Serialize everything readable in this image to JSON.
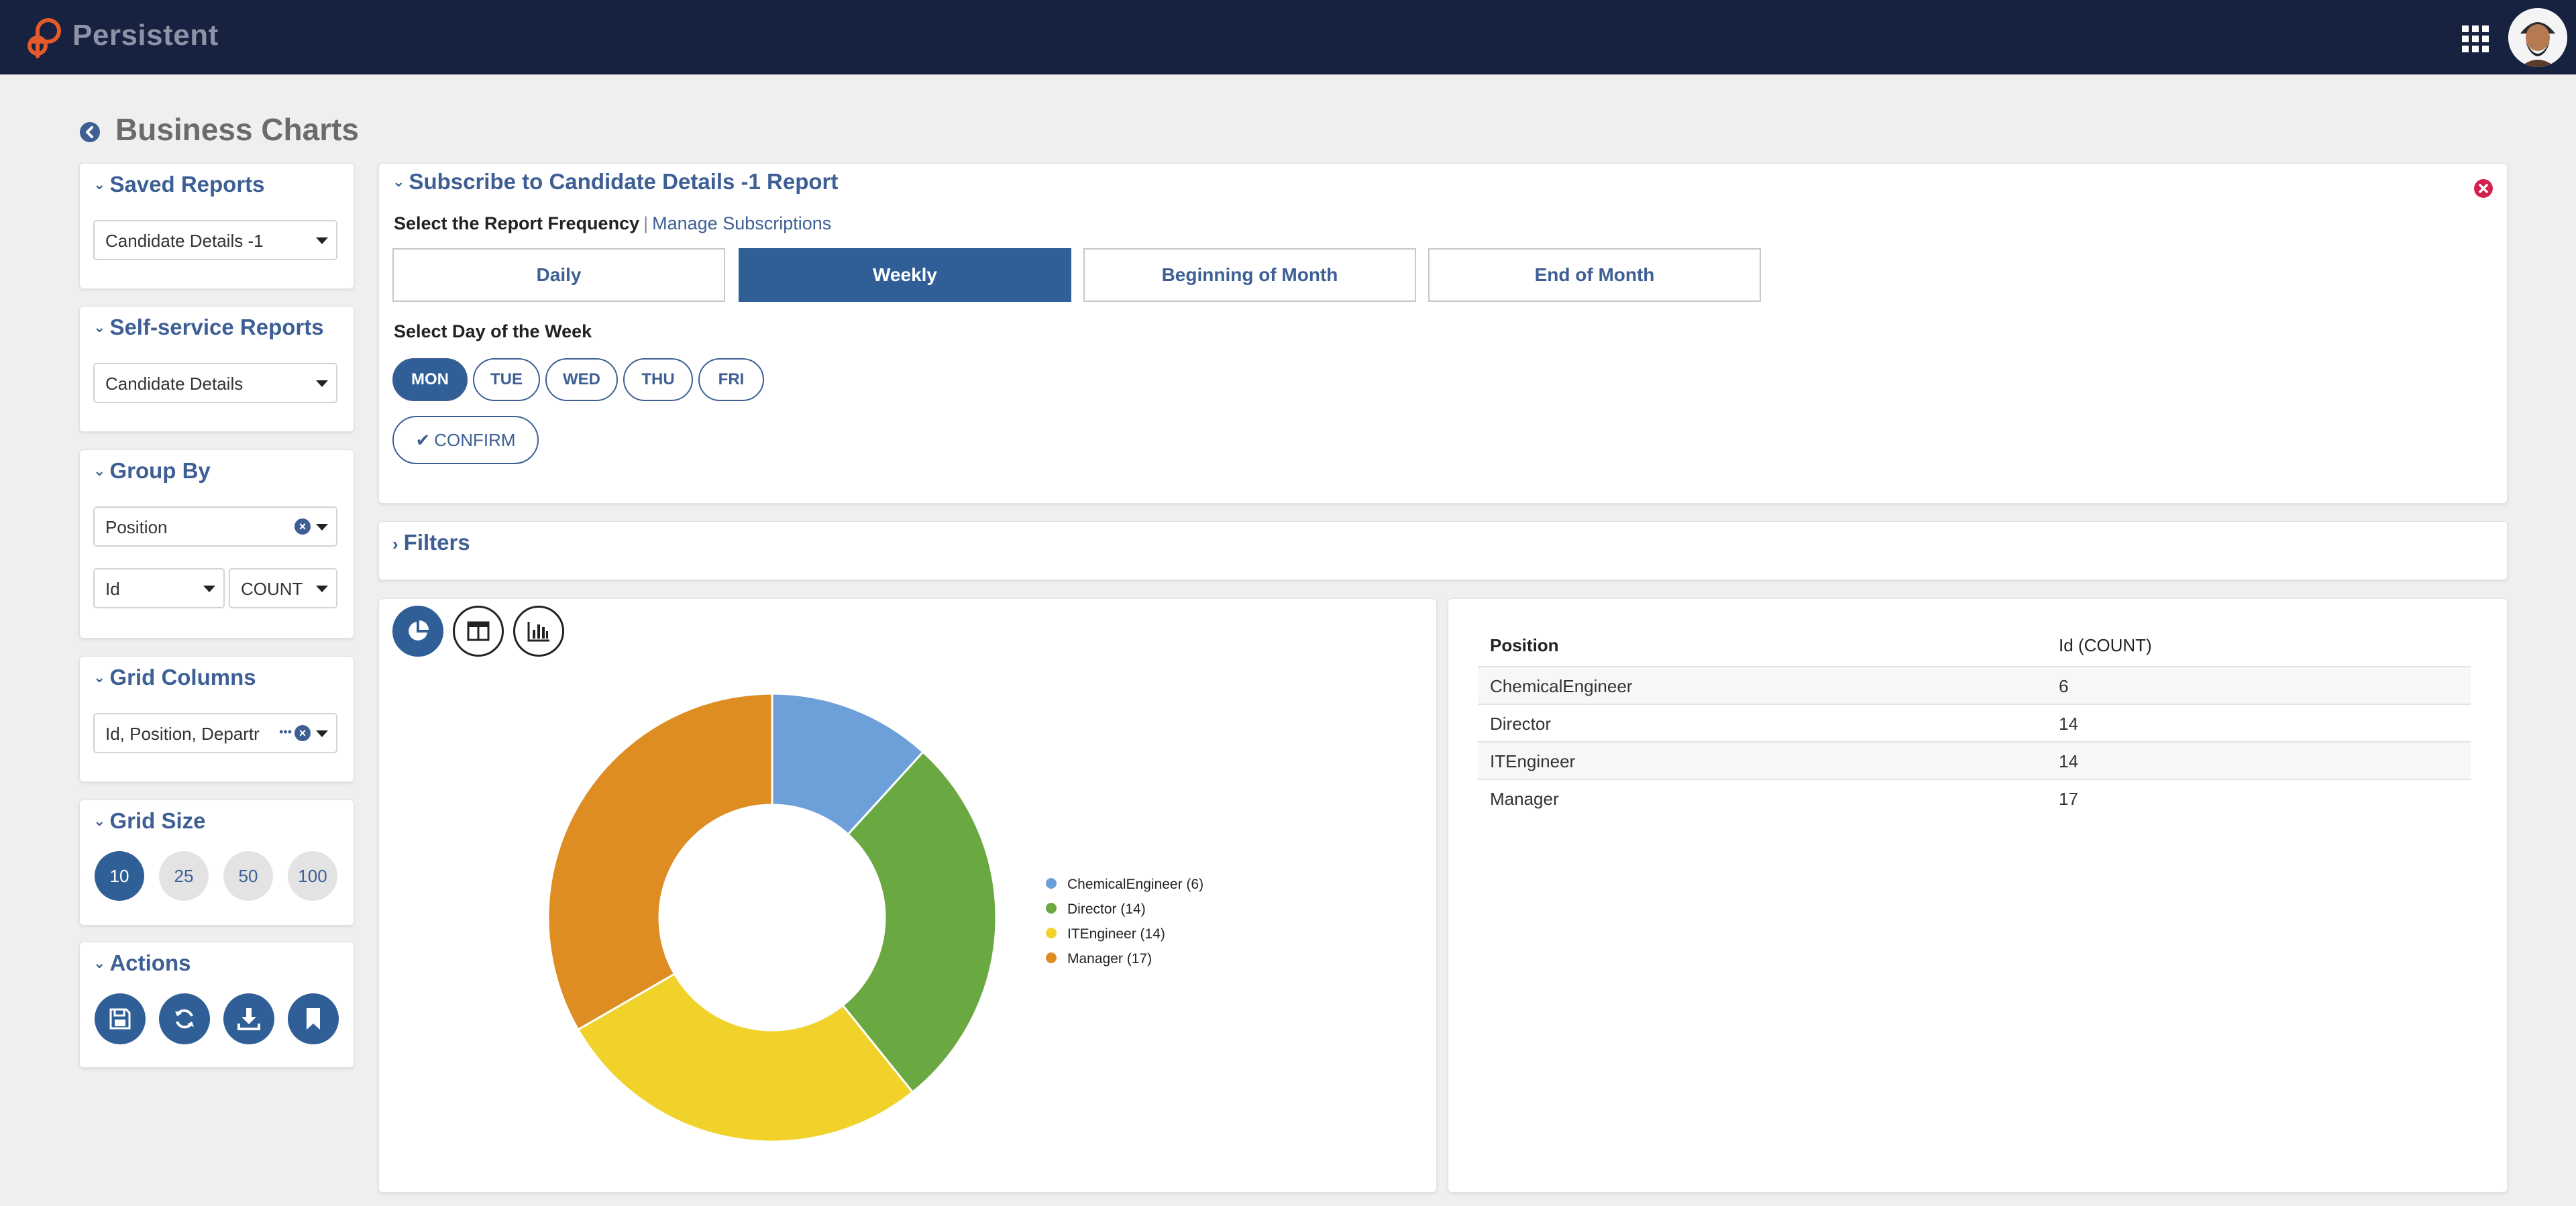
{
  "app": {
    "brand": "Persistent"
  },
  "page": {
    "title": "Business Charts"
  },
  "sidebar": {
    "saved_reports": {
      "title": "Saved Reports",
      "value": "Candidate Details -1"
    },
    "self_service": {
      "title": "Self-service Reports",
      "value": "Candidate Details"
    },
    "group_by": {
      "title": "Group By",
      "field": "Position",
      "measure_field": "Id",
      "aggregate": "COUNT"
    },
    "grid_columns": {
      "title": "Grid Columns",
      "value": "Id, Position, Departr",
      "ellipsis": "•••"
    },
    "grid_size": {
      "title": "Grid Size",
      "options": [
        "10",
        "25",
        "50",
        "100"
      ],
      "selected": "10"
    },
    "actions": {
      "title": "Actions",
      "buttons": [
        "save-icon",
        "refresh-icon",
        "download-icon",
        "bookmark-icon"
      ]
    }
  },
  "subscribe": {
    "title": "Subscribe to Candidate Details -1 Report",
    "freq_label": "Select the Report Frequency",
    "separator": "|",
    "manage_link": "Manage Subscriptions",
    "frequencies": [
      "Daily",
      "Weekly",
      "Beginning of Month",
      "End of Month"
    ],
    "selected_frequency": "Weekly",
    "dow_label": "Select Day of the Week",
    "days": [
      "MON",
      "TUE",
      "WED",
      "THU",
      "FRI"
    ],
    "selected_day": "MON",
    "confirm": "CONFIRM"
  },
  "filters": {
    "title": "Filters"
  },
  "chart_data": {
    "type": "pie",
    "variant": "donut",
    "categories": [
      "ChemicalEngineer",
      "Director",
      "ITEngineer",
      "Manager"
    ],
    "values": [
      6,
      14,
      14,
      17
    ],
    "colors": [
      "#6d9fd9",
      "#6aa842",
      "#f0d22b",
      "#dd8d22"
    ],
    "legend": [
      "ChemicalEngineer (6)",
      "Director (14)",
      "ITEngineer (14)",
      "Manager (17)"
    ],
    "legend_position": "right"
  },
  "table": {
    "columns": [
      "Position",
      "Id (COUNT)"
    ],
    "rows": [
      [
        "ChemicalEngineer",
        "6"
      ],
      [
        "Director",
        "14"
      ],
      [
        "ITEngineer",
        "14"
      ],
      [
        "Manager",
        "17"
      ]
    ]
  },
  "colors": {
    "header": "#172140",
    "accent": "#2f5f96",
    "danger": "#d2224d",
    "page_bg": "#efefef"
  }
}
